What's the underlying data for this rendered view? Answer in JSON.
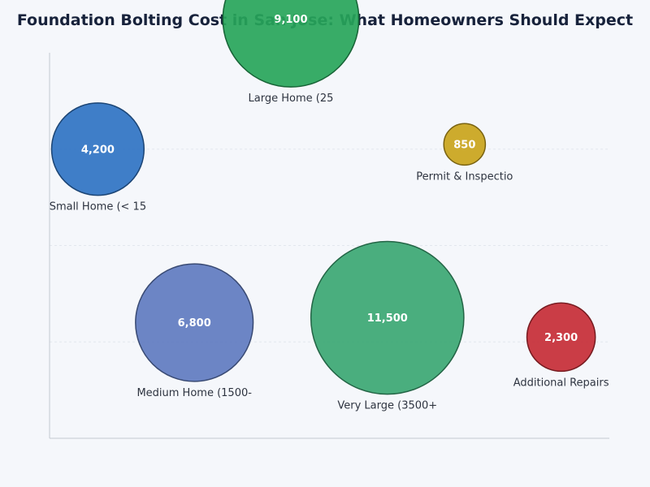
{
  "chart_data": {
    "type": "scatter",
    "subtype": "bubble",
    "title": "Foundation Bolting Cost in San Jose: What Homeowners Should Expect",
    "xlabel": "",
    "ylabel": "",
    "grid": true,
    "legend": "none",
    "series": [
      {
        "points": [
          {
            "label": "Small Home (< 15",
            "x": 1,
            "y": 3,
            "value": 4200,
            "value_label": "4,200",
            "color": "#2f73c3"
          },
          {
            "label": "Medium Home (1500-",
            "x": 2,
            "y": 1.2,
            "value": 6800,
            "value_label": "6,800",
            "color": "#5f7bc0"
          },
          {
            "label": "Large Home (25",
            "x": 3,
            "y": 4.35,
            "value": 9100,
            "value_label": "9,100",
            "color": "#27a55a"
          },
          {
            "label": "Very Large (3500+",
            "x": 4,
            "y": 1.25,
            "value": 11500,
            "value_label": "11,500",
            "color": "#3ba773"
          },
          {
            "label": "Permit & Inspectio",
            "x": 4.8,
            "y": 3.05,
            "value": 850,
            "value_label": "850",
            "color": "#c9a41b"
          },
          {
            "label": "Additional Repairs",
            "x": 5.8,
            "y": 1.05,
            "value": 2300,
            "value_label": "2,300",
            "color": "#c52d36"
          }
        ]
      }
    ]
  }
}
